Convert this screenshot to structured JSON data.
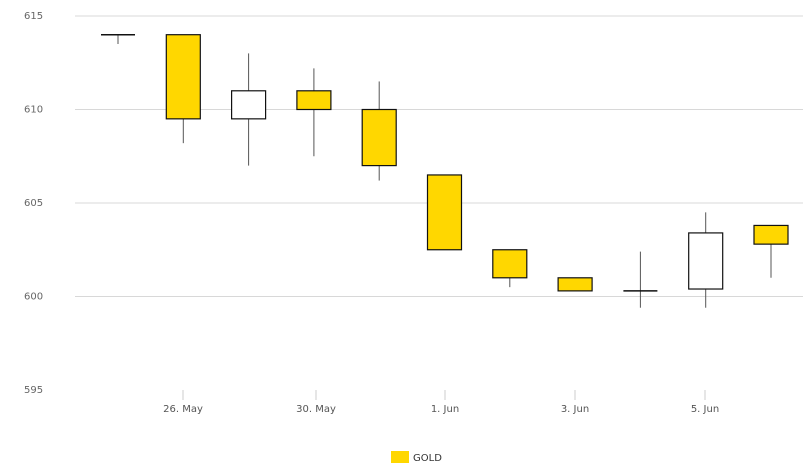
{
  "chart_data": {
    "type": "candlestick",
    "title": "",
    "xlabel": "",
    "ylabel": "",
    "ylim": [
      595,
      615
    ],
    "y_ticks": [
      "595",
      "600",
      "605",
      "610",
      "615"
    ],
    "x_tick_labels": [
      "26. May",
      "30. May",
      "1. Jun",
      "3. Jun",
      "5. Jun"
    ],
    "grid": true,
    "legend_position": "bottom-center",
    "colors": {
      "up": "#ffffff",
      "down": "#ffd700",
      "wick": "#555555",
      "grid": "#d8d8d8",
      "outline": "#111111"
    },
    "series": [
      {
        "name": "GOLD",
        "color": "#ffd700",
        "ohlc": [
          {
            "open": 614.0,
            "high": 614.0,
            "low": 613.5,
            "close": 614.0
          },
          {
            "open": 614.0,
            "high": 614.0,
            "low": 608.2,
            "close": 609.5
          },
          {
            "open": 609.5,
            "high": 613.0,
            "low": 607.0,
            "close": 611.0
          },
          {
            "open": 611.0,
            "high": 612.2,
            "low": 607.5,
            "close": 610.0
          },
          {
            "open": 610.0,
            "high": 611.5,
            "low": 606.2,
            "close": 607.0
          },
          {
            "open": 606.5,
            "high": 606.5,
            "low": 602.5,
            "close": 602.5
          },
          {
            "open": 602.5,
            "high": 602.5,
            "low": 600.5,
            "close": 601.0
          },
          {
            "open": 601.0,
            "high": 601.0,
            "low": 600.3,
            "close": 600.3
          },
          {
            "open": 600.3,
            "high": 602.4,
            "low": 599.4,
            "close": 600.3
          },
          {
            "open": 600.4,
            "high": 604.5,
            "low": 599.4,
            "close": 603.4
          },
          {
            "open": 603.8,
            "high": 603.8,
            "low": 601.0,
            "close": 602.8
          }
        ]
      }
    ]
  }
}
